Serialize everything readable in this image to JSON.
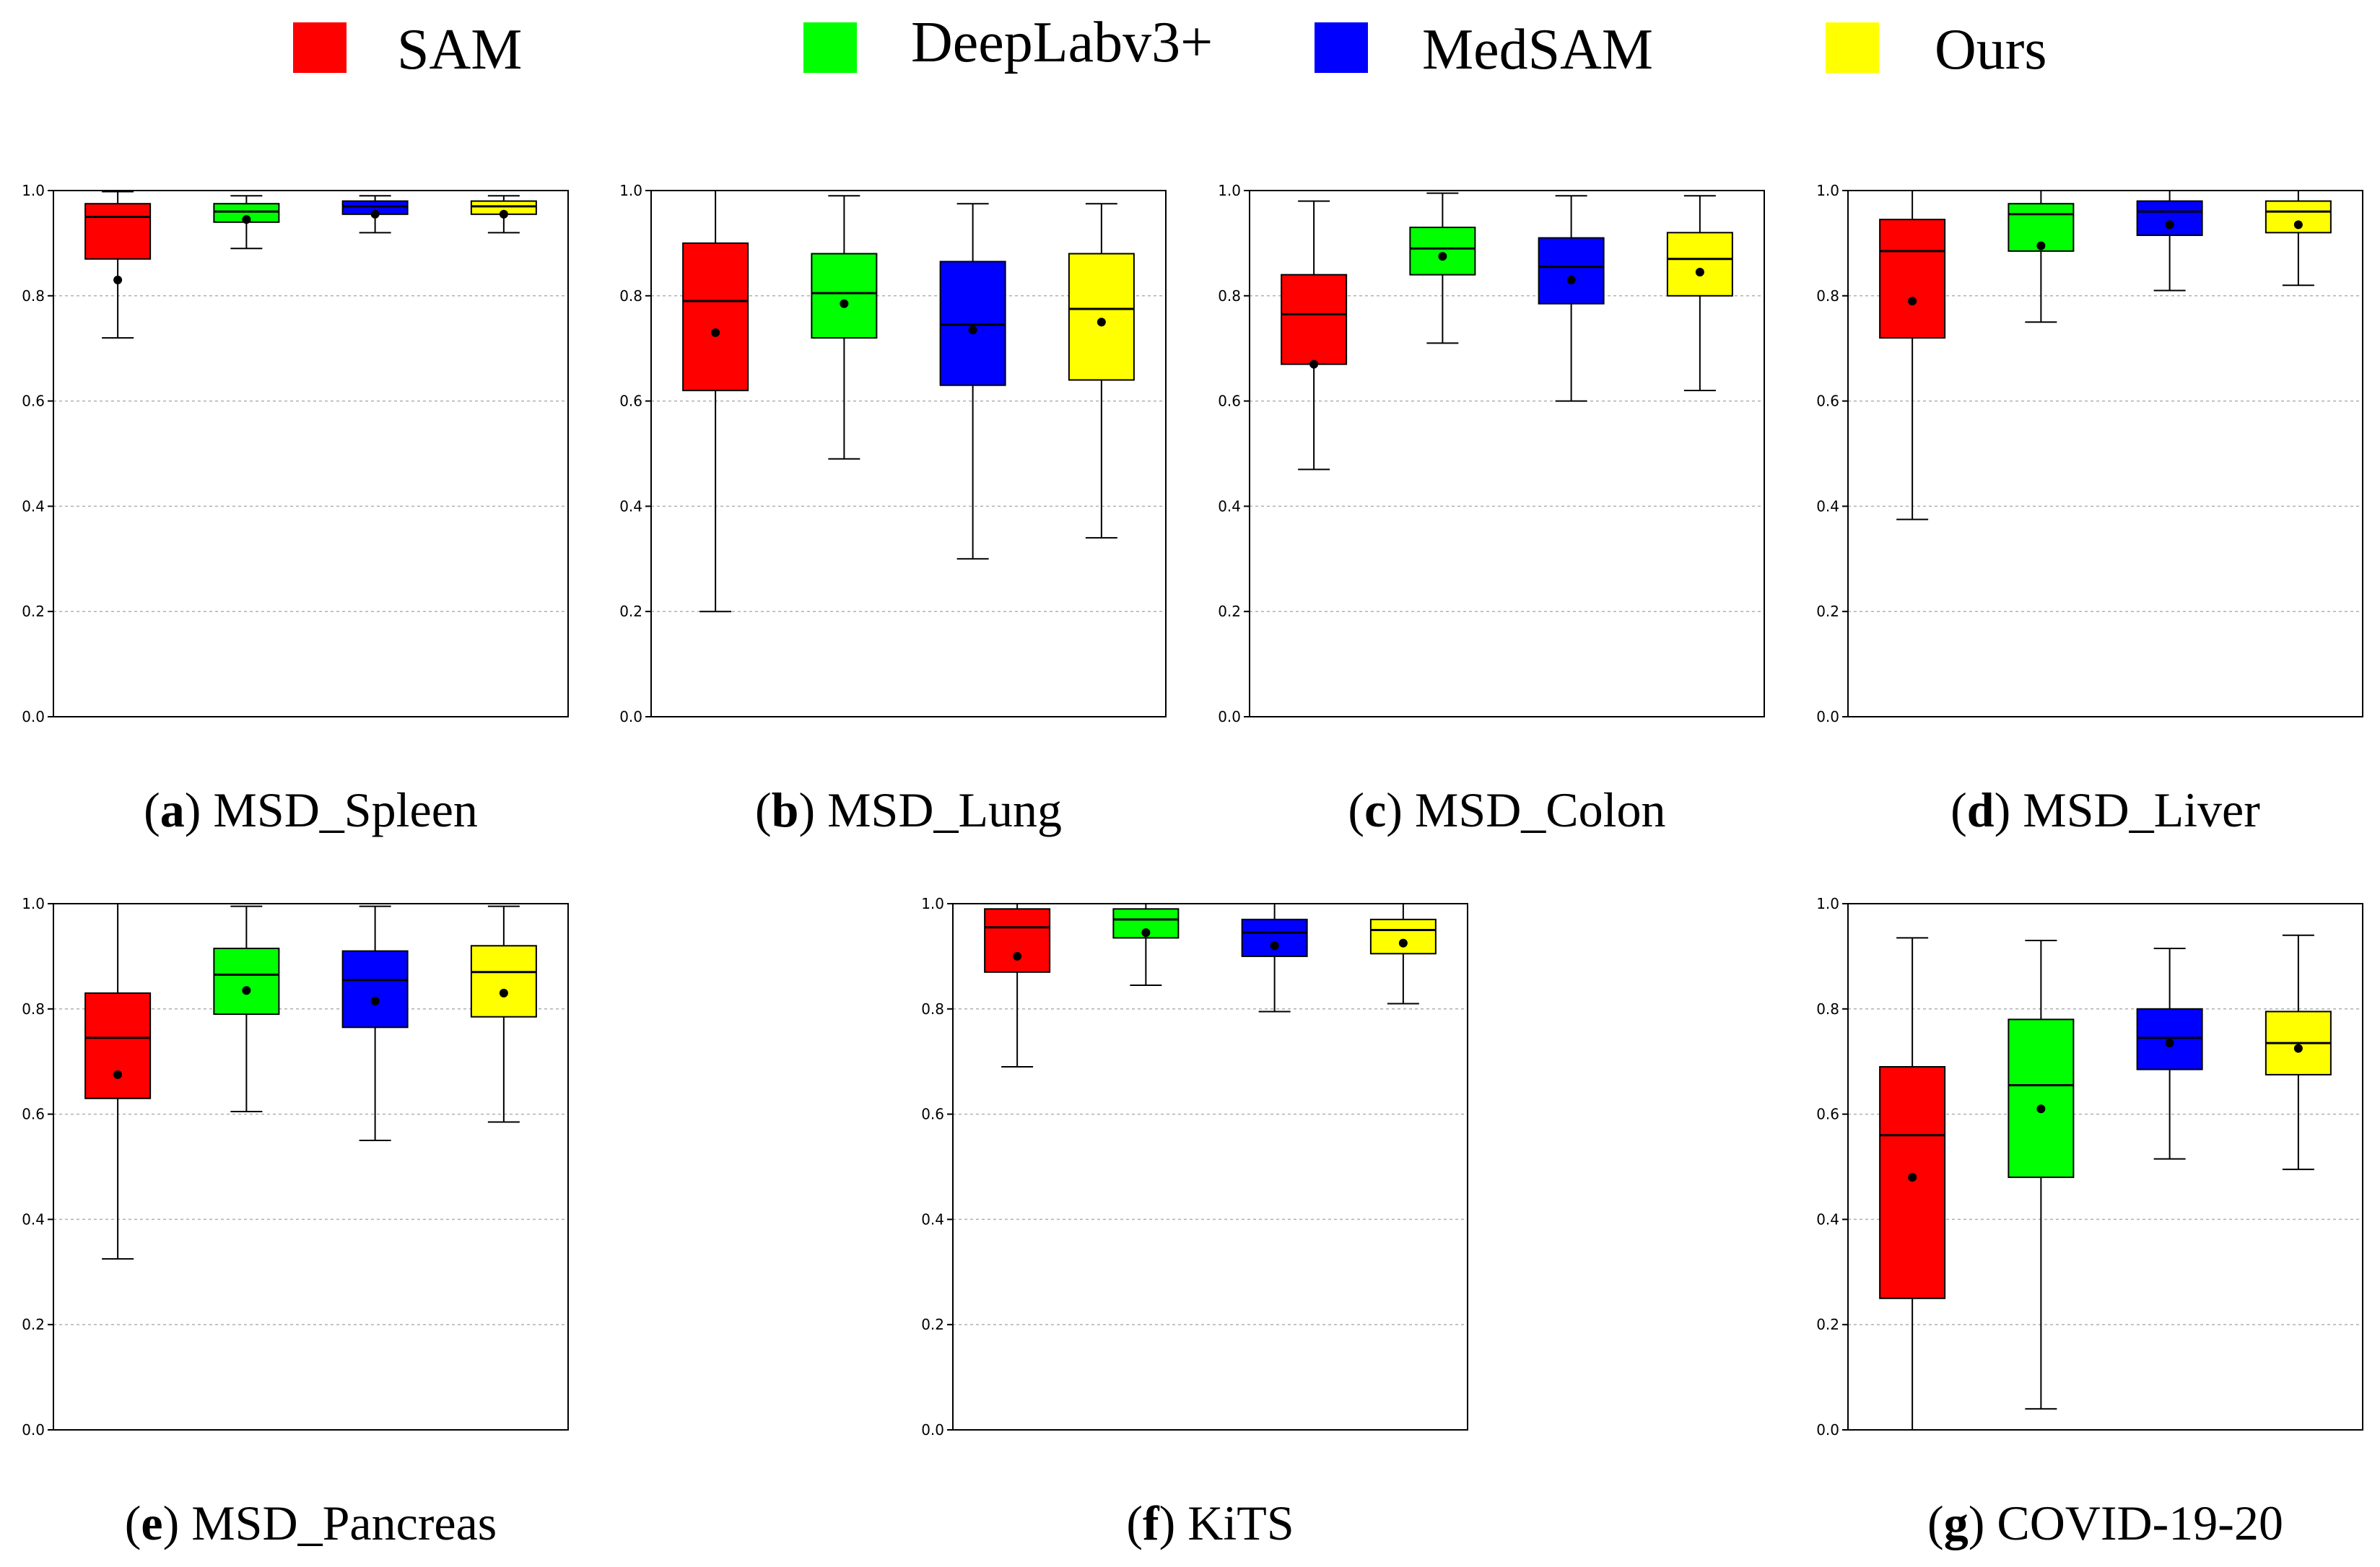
{
  "legend": [
    {
      "label": "SAM",
      "color": "#ff0000"
    },
    {
      "label": "DeepLabv3+",
      "color": "#00ff00"
    },
    {
      "label": "MedSAM",
      "color": "#0000ff"
    },
    {
      "label": "Ours",
      "color": "#ffff00"
    }
  ],
  "chart_data": [
    {
      "type": "box",
      "letter": "a",
      "title": "MSD_Spleen",
      "ylim": [
        0,
        1
      ],
      "yticks": [
        "0.0",
        "0.2",
        "0.4",
        "0.6",
        "0.8",
        "1.0"
      ],
      "series": [
        {
          "name": "SAM",
          "whisker_low": 0.72,
          "q1": 0.87,
          "median": 0.95,
          "q3": 0.975,
          "whisker_high": 0.998,
          "mean": 0.83
        },
        {
          "name": "DeepLabv3+",
          "whisker_low": 0.89,
          "q1": 0.94,
          "median": 0.96,
          "q3": 0.975,
          "whisker_high": 0.99,
          "mean": 0.945
        },
        {
          "name": "MedSAM",
          "whisker_low": 0.92,
          "q1": 0.955,
          "median": 0.97,
          "q3": 0.98,
          "whisker_high": 0.99,
          "mean": 0.955
        },
        {
          "name": "Ours",
          "whisker_low": 0.92,
          "q1": 0.955,
          "median": 0.97,
          "q3": 0.98,
          "whisker_high": 0.99,
          "mean": 0.955
        }
      ]
    },
    {
      "type": "box",
      "letter": "b",
      "title": "MSD_Lung",
      "ylim": [
        0,
        1
      ],
      "yticks": [
        "0.0",
        "0.2",
        "0.4",
        "0.6",
        "0.8",
        "1.0"
      ],
      "series": [
        {
          "name": "SAM",
          "whisker_low": 0.2,
          "q1": 0.62,
          "median": 0.79,
          "q3": 0.9,
          "whisker_high": 1.0,
          "mean": 0.73
        },
        {
          "name": "DeepLabv3+",
          "whisker_low": 0.49,
          "q1": 0.72,
          "median": 0.805,
          "q3": 0.88,
          "whisker_high": 0.99,
          "mean": 0.785
        },
        {
          "name": "MedSAM",
          "whisker_low": 0.3,
          "q1": 0.63,
          "median": 0.745,
          "q3": 0.865,
          "whisker_high": 0.975,
          "mean": 0.735
        },
        {
          "name": "Ours",
          "whisker_low": 0.34,
          "q1": 0.64,
          "median": 0.775,
          "q3": 0.88,
          "whisker_high": 0.975,
          "mean": 0.75
        }
      ]
    },
    {
      "type": "box",
      "letter": "c",
      "title": "MSD_Colon",
      "ylim": [
        0,
        1
      ],
      "yticks": [
        "0.0",
        "0.2",
        "0.4",
        "0.6",
        "0.8",
        "1.0"
      ],
      "series": [
        {
          "name": "SAM",
          "whisker_low": 0.47,
          "q1": 0.67,
          "median": 0.765,
          "q3": 0.84,
          "whisker_high": 0.98,
          "mean": 0.67
        },
        {
          "name": "DeepLabv3+",
          "whisker_low": 0.71,
          "q1": 0.84,
          "median": 0.89,
          "q3": 0.93,
          "whisker_high": 0.995,
          "mean": 0.875
        },
        {
          "name": "MedSAM",
          "whisker_low": 0.6,
          "q1": 0.785,
          "median": 0.855,
          "q3": 0.91,
          "whisker_high": 0.99,
          "mean": 0.83
        },
        {
          "name": "Ours",
          "whisker_low": 0.62,
          "q1": 0.8,
          "median": 0.87,
          "q3": 0.92,
          "whisker_high": 0.99,
          "mean": 0.845
        }
      ]
    },
    {
      "type": "box",
      "letter": "d",
      "title": "MSD_Liver",
      "ylim": [
        0,
        1
      ],
      "yticks": [
        "0.0",
        "0.2",
        "0.4",
        "0.6",
        "0.8",
        "1.0"
      ],
      "series": [
        {
          "name": "SAM",
          "whisker_low": 0.375,
          "q1": 0.72,
          "median": 0.885,
          "q3": 0.945,
          "whisker_high": 1.0,
          "mean": 0.79
        },
        {
          "name": "DeepLabv3+",
          "whisker_low": 0.75,
          "q1": 0.885,
          "median": 0.955,
          "q3": 0.975,
          "whisker_high": 1.0,
          "mean": 0.895
        },
        {
          "name": "MedSAM",
          "whisker_low": 0.81,
          "q1": 0.915,
          "median": 0.96,
          "q3": 0.98,
          "whisker_high": 1.0,
          "mean": 0.935
        },
        {
          "name": "Ours",
          "whisker_low": 0.82,
          "q1": 0.92,
          "median": 0.96,
          "q3": 0.98,
          "whisker_high": 1.0,
          "mean": 0.935
        }
      ]
    },
    {
      "type": "box",
      "letter": "e",
      "title": "MSD_Pancreas",
      "ylim": [
        0,
        1
      ],
      "yticks": [
        "0.0",
        "0.2",
        "0.4",
        "0.6",
        "0.8",
        "1.0"
      ],
      "series": [
        {
          "name": "SAM",
          "whisker_low": 0.325,
          "q1": 0.63,
          "median": 0.745,
          "q3": 0.83,
          "whisker_high": 1.0,
          "mean": 0.675
        },
        {
          "name": "DeepLabv3+",
          "whisker_low": 0.605,
          "q1": 0.79,
          "median": 0.865,
          "q3": 0.915,
          "whisker_high": 0.995,
          "mean": 0.835
        },
        {
          "name": "MedSAM",
          "whisker_low": 0.55,
          "q1": 0.765,
          "median": 0.855,
          "q3": 0.91,
          "whisker_high": 0.995,
          "mean": 0.815
        },
        {
          "name": "Ours",
          "whisker_low": 0.585,
          "q1": 0.785,
          "median": 0.87,
          "q3": 0.92,
          "whisker_high": 0.995,
          "mean": 0.83
        }
      ]
    },
    {
      "type": "box",
      "letter": "f",
      "title": "KiTS",
      "ylim": [
        0,
        1
      ],
      "yticks": [
        "0.0",
        "0.2",
        "0.4",
        "0.6",
        "0.8",
        "1.0"
      ],
      "series": [
        {
          "name": "SAM",
          "whisker_low": 0.69,
          "q1": 0.87,
          "median": 0.955,
          "q3": 0.99,
          "whisker_high": 1.0,
          "mean": 0.9
        },
        {
          "name": "DeepLabv3+",
          "whisker_low": 0.845,
          "q1": 0.935,
          "median": 0.97,
          "q3": 0.99,
          "whisker_high": 1.0,
          "mean": 0.945
        },
        {
          "name": "MedSAM",
          "whisker_low": 0.795,
          "q1": 0.9,
          "median": 0.945,
          "q3": 0.97,
          "whisker_high": 1.0,
          "mean": 0.92
        },
        {
          "name": "Ours",
          "whisker_low": 0.81,
          "q1": 0.905,
          "median": 0.95,
          "q3": 0.97,
          "whisker_high": 1.0,
          "mean": 0.925
        }
      ]
    },
    {
      "type": "box",
      "letter": "g",
      "title": "COVID-19-20",
      "ylim": [
        0,
        1
      ],
      "yticks": [
        "0.0",
        "0.2",
        "0.4",
        "0.6",
        "0.8",
        "1.0"
      ],
      "series": [
        {
          "name": "SAM",
          "whisker_low": 0.0,
          "q1": 0.25,
          "median": 0.56,
          "q3": 0.69,
          "whisker_high": 0.935,
          "mean": 0.48
        },
        {
          "name": "DeepLabv3+",
          "whisker_low": 0.04,
          "q1": 0.48,
          "median": 0.655,
          "q3": 0.78,
          "whisker_high": 0.93,
          "mean": 0.61
        },
        {
          "name": "MedSAM",
          "whisker_low": 0.515,
          "q1": 0.685,
          "median": 0.745,
          "q3": 0.8,
          "whisker_high": 0.915,
          "mean": 0.735
        },
        {
          "name": "Ours",
          "whisker_low": 0.495,
          "q1": 0.675,
          "median": 0.735,
          "q3": 0.795,
          "whisker_high": 0.94,
          "mean": 0.725
        }
      ]
    }
  ]
}
